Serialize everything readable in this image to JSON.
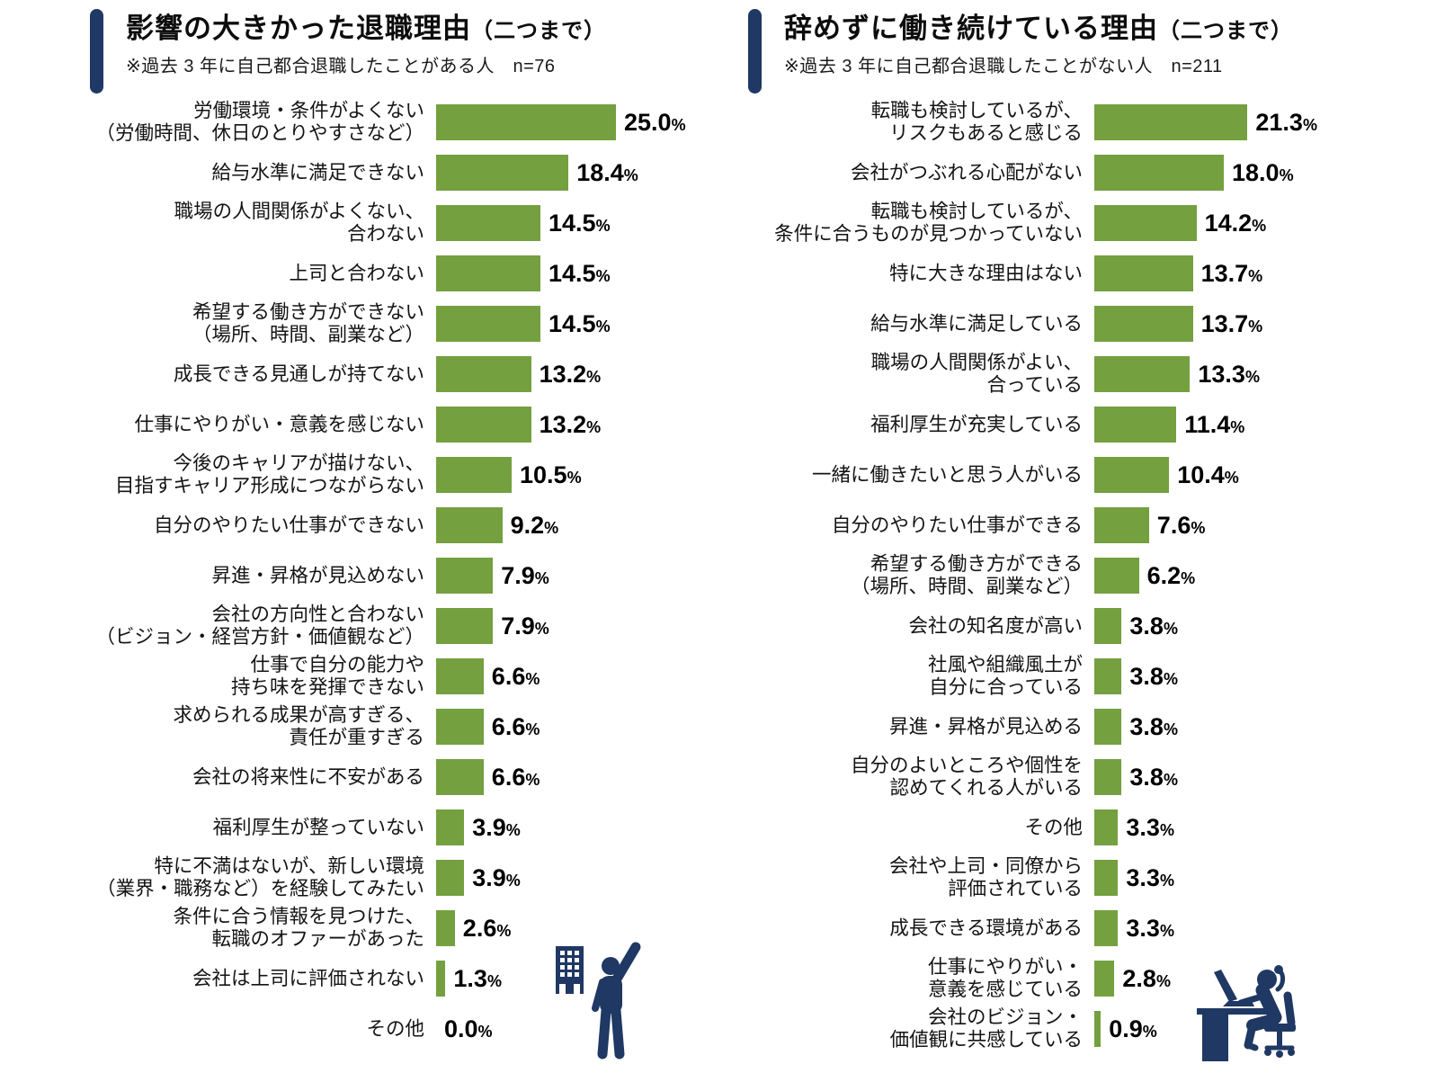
{
  "colors": {
    "accent": "#1F3864",
    "bar": "#74A03F"
  },
  "chart_data": [
    {
      "type": "bar",
      "orientation": "horizontal",
      "title": "影響の大きかった退職理由",
      "title_suffix": "（二つまで）",
      "note": "※過去 3 年に自己都合退職したことがある人　n=76",
      "value_suffix": "%",
      "xlim": [
        0,
        26
      ],
      "grid": false,
      "data_labels": true,
      "icon": "office-building-and-person-raising-hand-icon",
      "categories": [
        "労働環境・条件がよくない\n（労働時間、休日のとりやすさなど）",
        "給与水準に満足できない",
        "職場の人間関係がよくない、\n合わない",
        "上司と合わない",
        "希望する働き方ができない\n（場所、時間、副業など）",
        "成長できる見通しが持てない",
        "仕事にやりがい・意義を感じない",
        "今後のキャリアが描けない、\n目指すキャリア形成につながらない",
        "自分のやりたい仕事ができない",
        "昇進・昇格が見込めない",
        "会社の方向性と合わない\n（ビジョン・経営方針・価値観など）",
        "仕事で自分の能力や\n持ち味を発揮できない",
        "求められる成果が高すぎる、\n責任が重すぎる",
        "会社の将来性に不安がある",
        "福利厚生が整っていない",
        "特に不満はないが、新しい環境\n（業界・職務など）を経験してみたい",
        "条件に合う情報を見つけた、\n転職のオファーがあった",
        "会社は上司に評価されない",
        "その他"
      ],
      "values": [
        25.0,
        18.4,
        14.5,
        14.5,
        14.5,
        13.2,
        13.2,
        10.5,
        9.2,
        7.9,
        7.9,
        6.6,
        6.6,
        6.6,
        3.9,
        3.9,
        2.6,
        1.3,
        0.0
      ]
    },
    {
      "type": "bar",
      "orientation": "horizontal",
      "title": "辞めずに働き続けている理由",
      "title_suffix": "（二つまで）",
      "note": "※過去 3 年に自己都合退職したことがない人　n=211",
      "value_suffix": "%",
      "xlim": [
        0,
        26
      ],
      "grid": false,
      "data_labels": true,
      "icon": "person-working-at-desk-icon",
      "categories": [
        "転職も検討しているが、\nリスクもあると感じる",
        "会社がつぶれる心配がない",
        "転職も検討しているが、\n条件に合うものが見つかっていない",
        "特に大きな理由はない",
        "給与水準に満足している",
        "職場の人間関係がよい、\n合っている",
        "福利厚生が充実している",
        "一緒に働きたいと思う人がいる",
        "自分のやりたい仕事ができる",
        "希望する働き方ができる\n（場所、時間、副業など）",
        "会社の知名度が高い",
        "社風や組織風土が\n自分に合っている",
        "昇進・昇格が見込める",
        "自分のよいところや個性を\n認めてくれる人がいる",
        "その他",
        "会社や上司・同僚から\n評価されている",
        "成長できる環境がある",
        "仕事にやりがい・\n意義を感じている",
        "会社のビジョン・\n価値観に共感している"
      ],
      "values": [
        21.3,
        18.0,
        14.2,
        13.7,
        13.7,
        13.3,
        11.4,
        10.4,
        7.6,
        6.2,
        3.8,
        3.8,
        3.8,
        3.8,
        3.3,
        3.3,
        3.3,
        2.8,
        0.9
      ]
    }
  ]
}
